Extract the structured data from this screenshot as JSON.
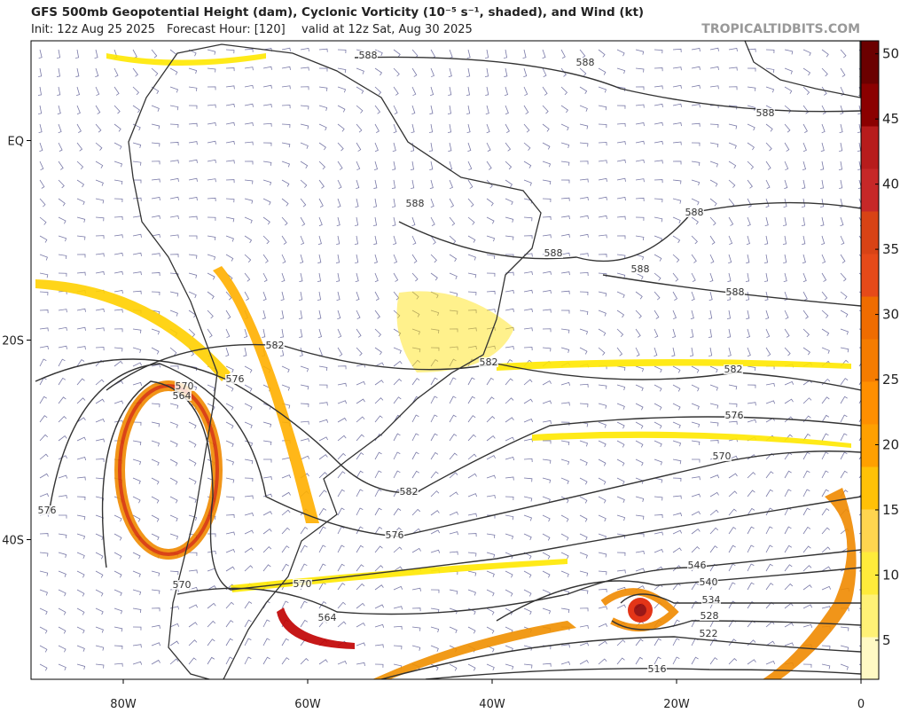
{
  "header": {
    "title": "GFS 500mb Geopotential Height (dam), Cyclonic Vorticity (10⁻⁵ s⁻¹, shaded), and Wind (kt)",
    "init": "Init: 12z Aug 25 2025",
    "forecast_hour": "Forecast Hour: [120]",
    "valid": "valid at 12z Sat, Aug 30 2025",
    "source": "TROPICALTIDBITS.COM"
  },
  "map": {
    "xlim": [
      -90,
      0
    ],
    "ylim": [
      -54,
      10
    ],
    "xticks": [
      {
        "value": -80,
        "label": "80W"
      },
      {
        "value": -60,
        "label": "60W"
      },
      {
        "value": -40,
        "label": "40W"
      },
      {
        "value": -20,
        "label": "20W"
      },
      0
    ],
    "yticks": [
      {
        "value": 0,
        "label": "EQ"
      },
      {
        "value": -20,
        "label": "20S"
      },
      {
        "value": -40,
        "label": "40S"
      }
    ],
    "contour_labels": [
      588,
      588,
      588,
      588,
      588,
      588,
      588,
      588,
      582,
      582,
      582,
      582,
      576,
      576,
      576,
      576,
      570,
      570,
      570,
      570,
      564,
      564,
      546,
      540,
      534,
      528,
      522,
      516
    ]
  },
  "colorbar": {
    "lim": [
      2,
      51
    ],
    "ticks": [
      5,
      10,
      15,
      20,
      25,
      30,
      35,
      40,
      45,
      50
    ]
  }
}
